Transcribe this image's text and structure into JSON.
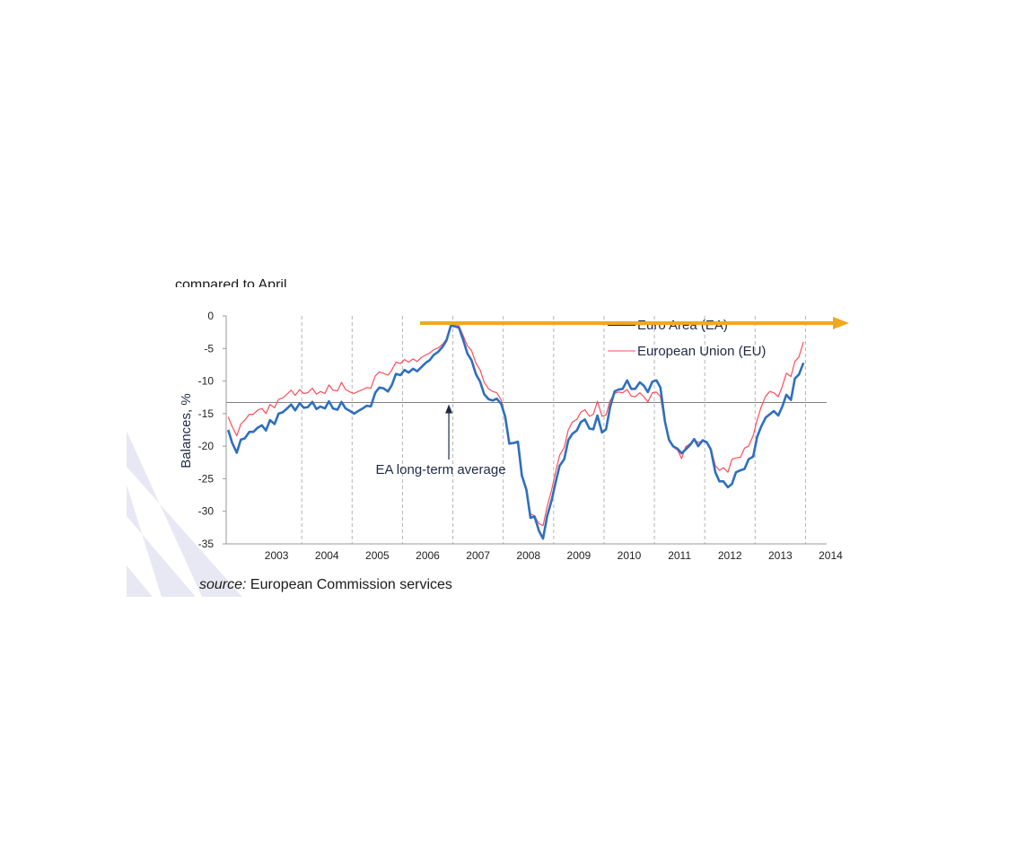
{
  "colors": {
    "ea": "#2e6fbf",
    "eu": "#ff4d5a",
    "average": "#808080",
    "arrow": "#f0a820",
    "grid": "#b5b5b5",
    "axis": "#9a9a9a",
    "decor": "#e8e8f4"
  },
  "header_fragment": "compared to April",
  "source": {
    "prefix": "source:",
    "text": " European Commission services"
  },
  "annotation": {
    "text": "EA long-term average",
    "date": 2006.92,
    "value": -13.3
  },
  "chart_data": {
    "type": "line",
    "ylabel": "Balances, %",
    "ylim": [
      -35,
      0
    ],
    "yticks": [
      0,
      -5,
      -10,
      -15,
      -20,
      -25,
      -30,
      -35
    ],
    "xlim": [
      2002.5,
      2014.42
    ],
    "xticks": [
      "2003",
      "2004",
      "2005",
      "2006",
      "2007",
      "2008",
      "2009",
      "2010",
      "2011",
      "2012",
      "2013",
      "2014"
    ],
    "grid": "vertical dashed at year boundaries",
    "legend": "top-right",
    "reference_line": {
      "name": "EA long-term average",
      "value": -13.3
    },
    "series": [
      {
        "name": "Euro Area (EA)",
        "points": [
          [
            2002.54,
            -17.5
          ],
          [
            2002.62,
            -19.5
          ],
          [
            2002.71,
            -21.0
          ],
          [
            2002.79,
            -19
          ],
          [
            2002.87,
            -18.8
          ],
          [
            2002.96,
            -17.8
          ],
          [
            2003.04,
            -17.8
          ],
          [
            2003.12,
            -17.2
          ],
          [
            2003.21,
            -16.8
          ],
          [
            2003.29,
            -17.6
          ],
          [
            2003.37,
            -16
          ],
          [
            2003.46,
            -16.6
          ],
          [
            2003.54,
            -15
          ],
          [
            2003.62,
            -14.8
          ],
          [
            2003.71,
            -14.2
          ],
          [
            2003.79,
            -13.6
          ],
          [
            2003.87,
            -14.5
          ],
          [
            2003.96,
            -13.4
          ],
          [
            2004.04,
            -14.1
          ],
          [
            2004.12,
            -14
          ],
          [
            2004.21,
            -13.2
          ],
          [
            2004.29,
            -14.3
          ],
          [
            2004.37,
            -13.9
          ],
          [
            2004.46,
            -14.2
          ],
          [
            2004.54,
            -13.1
          ],
          [
            2004.62,
            -14.2
          ],
          [
            2004.71,
            -14.4
          ],
          [
            2004.79,
            -13.2
          ],
          [
            2004.87,
            -14.2
          ],
          [
            2004.96,
            -14.6
          ],
          [
            2005.04,
            -15
          ],
          [
            2005.12,
            -14.6
          ],
          [
            2005.21,
            -14.2
          ],
          [
            2005.29,
            -13.8
          ],
          [
            2005.37,
            -13.9
          ],
          [
            2005.46,
            -11.8
          ],
          [
            2005.54,
            -11
          ],
          [
            2005.62,
            -11.1
          ],
          [
            2005.71,
            -11.6
          ],
          [
            2005.79,
            -10.6
          ],
          [
            2005.87,
            -8.9
          ],
          [
            2005.96,
            -9.1
          ],
          [
            2006.04,
            -8.3
          ],
          [
            2006.12,
            -8.7
          ],
          [
            2006.21,
            -8.1
          ],
          [
            2006.29,
            -8.5
          ],
          [
            2006.37,
            -7.9
          ],
          [
            2006.46,
            -7.2
          ],
          [
            2006.54,
            -6.8
          ],
          [
            2006.62,
            -6
          ],
          [
            2006.71,
            -5.5
          ],
          [
            2006.79,
            -4.8
          ],
          [
            2006.87,
            -3.8
          ],
          [
            2006.96,
            -1.5
          ],
          [
            2007.04,
            -1.6
          ],
          [
            2007.12,
            -1.8
          ],
          [
            2007.21,
            -3.8
          ],
          [
            2007.29,
            -5.8
          ],
          [
            2007.37,
            -6.8
          ],
          [
            2007.46,
            -9
          ],
          [
            2007.54,
            -10.1
          ],
          [
            2007.62,
            -12
          ],
          [
            2007.71,
            -12.8
          ],
          [
            2007.79,
            -13
          ],
          [
            2007.87,
            -12.7
          ],
          [
            2007.96,
            -13.5
          ],
          [
            2008.04,
            -15.5
          ],
          [
            2008.12,
            -19.6
          ],
          [
            2008.21,
            -19.5
          ],
          [
            2008.29,
            -19.3
          ],
          [
            2008.37,
            -24.5
          ],
          [
            2008.46,
            -26.7
          ],
          [
            2008.54,
            -31
          ],
          [
            2008.62,
            -30.8
          ],
          [
            2008.71,
            -33
          ],
          [
            2008.79,
            -34.2
          ],
          [
            2008.87,
            -30.8
          ],
          [
            2008.96,
            -28.3
          ],
          [
            2009.04,
            -25.5
          ],
          [
            2009.12,
            -23
          ],
          [
            2009.21,
            -22
          ],
          [
            2009.29,
            -19.1
          ],
          [
            2009.37,
            -18.1
          ],
          [
            2009.46,
            -17.6
          ],
          [
            2009.54,
            -16.3
          ],
          [
            2009.62,
            -15.9
          ],
          [
            2009.71,
            -17.3
          ],
          [
            2009.79,
            -17.4
          ],
          [
            2009.87,
            -15.3
          ],
          [
            2009.96,
            -17.9
          ],
          [
            2010.04,
            -17.4
          ],
          [
            2010.12,
            -14
          ],
          [
            2010.21,
            -11.6
          ],
          [
            2010.29,
            -11.3
          ],
          [
            2010.37,
            -11.2
          ],
          [
            2010.46,
            -9.9
          ],
          [
            2010.54,
            -11.2
          ],
          [
            2010.62,
            -11.2
          ],
          [
            2010.71,
            -10.2
          ],
          [
            2010.79,
            -10.7
          ],
          [
            2010.87,
            -11.7
          ],
          [
            2010.96,
            -10.1
          ],
          [
            2011.04,
            -9.9
          ],
          [
            2011.12,
            -11
          ],
          [
            2011.21,
            -16.2
          ],
          [
            2011.29,
            -19
          ],
          [
            2011.37,
            -20
          ],
          [
            2011.46,
            -20.4
          ],
          [
            2011.54,
            -21.1
          ],
          [
            2011.62,
            -20.5
          ],
          [
            2011.71,
            -19.8
          ],
          [
            2011.79,
            -18.9
          ],
          [
            2011.87,
            -20
          ],
          [
            2011.96,
            -19.1
          ],
          [
            2012.04,
            -19.4
          ],
          [
            2012.12,
            -20.5
          ],
          [
            2012.21,
            -24
          ],
          [
            2012.29,
            -25.4
          ],
          [
            2012.37,
            -25.4
          ],
          [
            2012.46,
            -26.3
          ],
          [
            2012.54,
            -25.8
          ],
          [
            2012.62,
            -24
          ],
          [
            2012.71,
            -23.7
          ],
          [
            2012.79,
            -23.5
          ],
          [
            2012.87,
            -22
          ],
          [
            2012.96,
            -21.6
          ],
          [
            2013.04,
            -18.6
          ],
          [
            2013.12,
            -17
          ],
          [
            2013.21,
            -15.6
          ],
          [
            2013.29,
            -15.1
          ],
          [
            2013.37,
            -14.6
          ],
          [
            2013.46,
            -15.3
          ],
          [
            2013.54,
            -13.9
          ],
          [
            2013.62,
            -12.1
          ],
          [
            2013.71,
            -12.9
          ],
          [
            2013.79,
            -9.6
          ],
          [
            2013.87,
            -9
          ],
          [
            2013.96,
            -7.2
          ]
        ]
      },
      {
        "name": "European Union (EU)",
        "points": [
          [
            2002.54,
            -15.5
          ],
          [
            2002.62,
            -17
          ],
          [
            2002.71,
            -18.4
          ],
          [
            2002.79,
            -16.6
          ],
          [
            2002.87,
            -16
          ],
          [
            2002.96,
            -15.1
          ],
          [
            2003.04,
            -15.1
          ],
          [
            2003.12,
            -14.5
          ],
          [
            2003.21,
            -14.2
          ],
          [
            2003.29,
            -15
          ],
          [
            2003.37,
            -13.6
          ],
          [
            2003.46,
            -14.1
          ],
          [
            2003.54,
            -12.8
          ],
          [
            2003.62,
            -12.6
          ],
          [
            2003.71,
            -12
          ],
          [
            2003.79,
            -11.4
          ],
          [
            2003.87,
            -12.2
          ],
          [
            2003.96,
            -11.3
          ],
          [
            2004.04,
            -11.9
          ],
          [
            2004.12,
            -11.8
          ],
          [
            2004.21,
            -11.1
          ],
          [
            2004.29,
            -12
          ],
          [
            2004.37,
            -11.6
          ],
          [
            2004.46,
            -11.9
          ],
          [
            2004.54,
            -10.6
          ],
          [
            2004.62,
            -11.4
          ],
          [
            2004.71,
            -11.5
          ],
          [
            2004.79,
            -10.2
          ],
          [
            2004.87,
            -11.3
          ],
          [
            2004.96,
            -11.7
          ],
          [
            2005.04,
            -11.9
          ],
          [
            2005.12,
            -11.6
          ],
          [
            2005.21,
            -11.3
          ],
          [
            2005.29,
            -11
          ],
          [
            2005.37,
            -11.1
          ],
          [
            2005.46,
            -9.2
          ],
          [
            2005.54,
            -8.6
          ],
          [
            2005.62,
            -8.8
          ],
          [
            2005.71,
            -9.1
          ],
          [
            2005.79,
            -8.3
          ],
          [
            2005.87,
            -7.1
          ],
          [
            2005.96,
            -7.3
          ],
          [
            2006.04,
            -6.7
          ],
          [
            2006.12,
            -7.1
          ],
          [
            2006.21,
            -6.6
          ],
          [
            2006.29,
            -7
          ],
          [
            2006.37,
            -6.4
          ],
          [
            2006.46,
            -6
          ],
          [
            2006.54,
            -5.7
          ],
          [
            2006.62,
            -5.2
          ],
          [
            2006.71,
            -4.9
          ],
          [
            2006.79,
            -4.4
          ],
          [
            2006.87,
            -3.6
          ],
          [
            2006.96,
            -1.5
          ],
          [
            2007.04,
            -1.5
          ],
          [
            2007.12,
            -1.5
          ],
          [
            2007.21,
            -3.1
          ],
          [
            2007.29,
            -4.6
          ],
          [
            2007.37,
            -5.3
          ],
          [
            2007.46,
            -7.3
          ],
          [
            2007.54,
            -8.3
          ],
          [
            2007.62,
            -10.2
          ],
          [
            2007.71,
            -11.2
          ],
          [
            2007.79,
            -11.6
          ],
          [
            2007.87,
            -11.8
          ],
          [
            2007.96,
            -12.9
          ],
          [
            2008.04,
            -15.5
          ],
          [
            2008.12,
            -19.7
          ],
          [
            2008.21,
            -19.6
          ],
          [
            2008.29,
            -19.5
          ],
          [
            2008.37,
            -24.4
          ],
          [
            2008.46,
            -26.5
          ],
          [
            2008.54,
            -30.4
          ],
          [
            2008.62,
            -30.7
          ],
          [
            2008.71,
            -31.9
          ],
          [
            2008.79,
            -32.2
          ],
          [
            2008.87,
            -29.3
          ],
          [
            2008.96,
            -26.7
          ],
          [
            2009.04,
            -23.9
          ],
          [
            2009.12,
            -21.4
          ],
          [
            2009.21,
            -20.2
          ],
          [
            2009.29,
            -17.5
          ],
          [
            2009.37,
            -16.3
          ],
          [
            2009.46,
            -15.9
          ],
          [
            2009.54,
            -14.8
          ],
          [
            2009.62,
            -14.4
          ],
          [
            2009.71,
            -15.4
          ],
          [
            2009.79,
            -15.1
          ],
          [
            2009.87,
            -13.1
          ],
          [
            2009.96,
            -15.4
          ],
          [
            2010.04,
            -15.2
          ],
          [
            2010.12,
            -13
          ],
          [
            2010.21,
            -11.9
          ],
          [
            2010.29,
            -11.7
          ],
          [
            2010.37,
            -11.8
          ],
          [
            2010.46,
            -11.3
          ],
          [
            2010.54,
            -12.3
          ],
          [
            2010.62,
            -12.4
          ],
          [
            2010.71,
            -11.8
          ],
          [
            2010.79,
            -12.4
          ],
          [
            2010.87,
            -13.2
          ],
          [
            2010.96,
            -11.8
          ],
          [
            2011.04,
            -11.7
          ],
          [
            2011.12,
            -12.4
          ],
          [
            2011.21,
            -16.5
          ],
          [
            2011.29,
            -19.2
          ],
          [
            2011.37,
            -20.1
          ],
          [
            2011.46,
            -20.6
          ],
          [
            2011.54,
            -21.9
          ],
          [
            2011.62,
            -20.1
          ],
          [
            2011.71,
            -19.6
          ],
          [
            2011.79,
            -19.1
          ],
          [
            2011.87,
            -19.4
          ],
          [
            2011.96,
            -19.2
          ],
          [
            2012.04,
            -19.5
          ],
          [
            2012.12,
            -20.3
          ],
          [
            2012.21,
            -23
          ],
          [
            2012.29,
            -23.7
          ],
          [
            2012.37,
            -23.3
          ],
          [
            2012.46,
            -24
          ],
          [
            2012.54,
            -22
          ],
          [
            2012.62,
            -21.8
          ],
          [
            2012.71,
            -21.7
          ],
          [
            2012.79,
            -20.3
          ],
          [
            2012.87,
            -20
          ],
          [
            2012.96,
            -18.4
          ],
          [
            2013.04,
            -16
          ],
          [
            2013.12,
            -14
          ],
          [
            2013.21,
            -12.3
          ],
          [
            2013.29,
            -11.6
          ],
          [
            2013.37,
            -11.8
          ],
          [
            2013.46,
            -12.4
          ],
          [
            2013.54,
            -10.8
          ],
          [
            2013.62,
            -8.8
          ],
          [
            2013.71,
            -9.3
          ],
          [
            2013.79,
            -7
          ],
          [
            2013.87,
            -6.3
          ],
          [
            2013.96,
            -4
          ]
        ]
      }
    ]
  }
}
